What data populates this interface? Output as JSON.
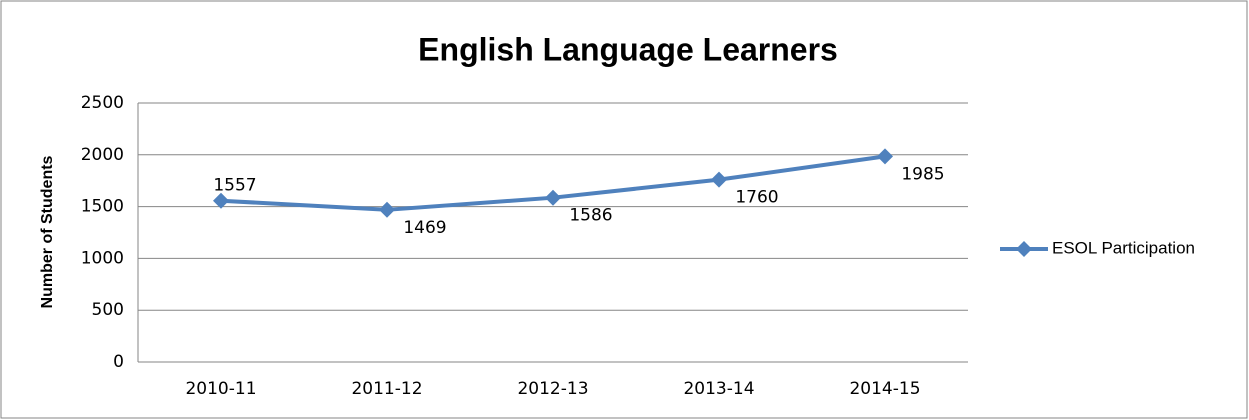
{
  "chart_data": {
    "type": "line",
    "title": "English Language Learners",
    "y_label": "Number of Students",
    "categories": [
      "2010-11",
      "2011-12",
      "2012-13",
      "2013-14",
      "2014-15"
    ],
    "series": [
      {
        "name": "ESOL Participation",
        "color": "#4f81bd",
        "values": [
          1557,
          1469,
          1586,
          1760,
          1985
        ]
      }
    ],
    "ylim": [
      0,
      2500
    ],
    "yticks": [
      0,
      500,
      1000,
      1500,
      2000,
      2500
    ],
    "grid": true,
    "legend": "right"
  }
}
